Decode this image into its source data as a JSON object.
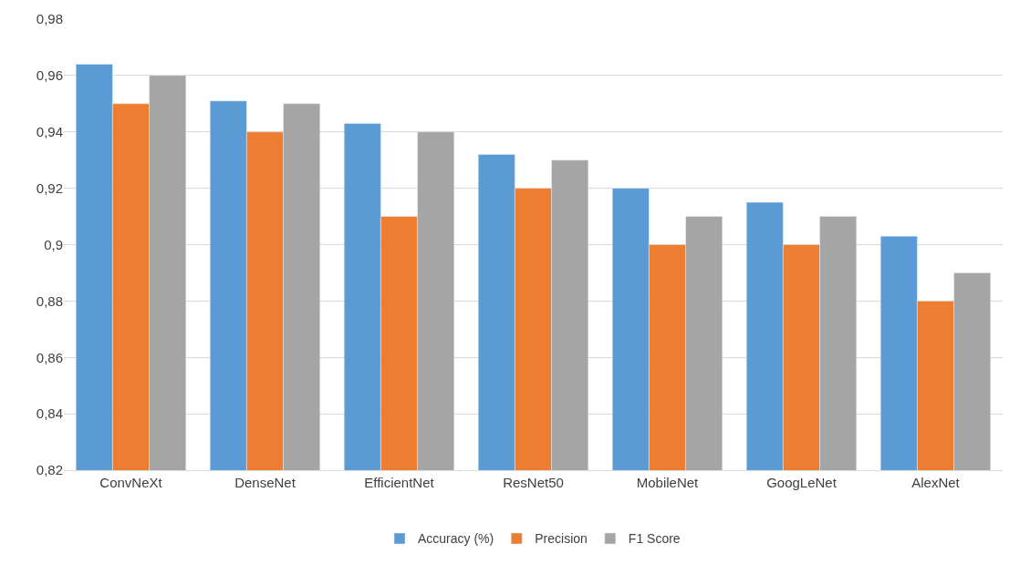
{
  "chart_data": {
    "type": "bar",
    "categories": [
      "ConvNeXt",
      "DenseNet",
      "EfficientNet",
      "ResNet50",
      "MobileNet",
      "GoogLeNet",
      "AlexNet"
    ],
    "series": [
      {
        "name": "Accuracy (%)",
        "color": "#5b9bd5",
        "values": [
          0.964,
          0.951,
          0.943,
          0.932,
          0.92,
          0.915,
          0.903
        ]
      },
      {
        "name": "Precision",
        "color": "#ed7d31",
        "values": [
          0.95,
          0.94,
          0.91,
          0.92,
          0.9,
          0.9,
          0.88
        ]
      },
      {
        "name": "F1 Score",
        "color": "#a5a5a5",
        "values": [
          0.96,
          0.95,
          0.94,
          0.93,
          0.91,
          0.91,
          0.89
        ]
      }
    ],
    "ylim": [
      0.82,
      0.98
    ],
    "yticks": [
      {
        "value": 0.82,
        "label": "0,82"
      },
      {
        "value": 0.84,
        "label": "0,84"
      },
      {
        "value": 0.86,
        "label": "0,86"
      },
      {
        "value": 0.88,
        "label": "0,88"
      },
      {
        "value": 0.9,
        "label": "0,9"
      },
      {
        "value": 0.92,
        "label": "0,92"
      },
      {
        "value": 0.94,
        "label": "0,94"
      },
      {
        "value": 0.96,
        "label": "0,96"
      },
      {
        "value": 0.98,
        "label": "0,98"
      }
    ],
    "grid": "y",
    "legend": "bottom"
  }
}
